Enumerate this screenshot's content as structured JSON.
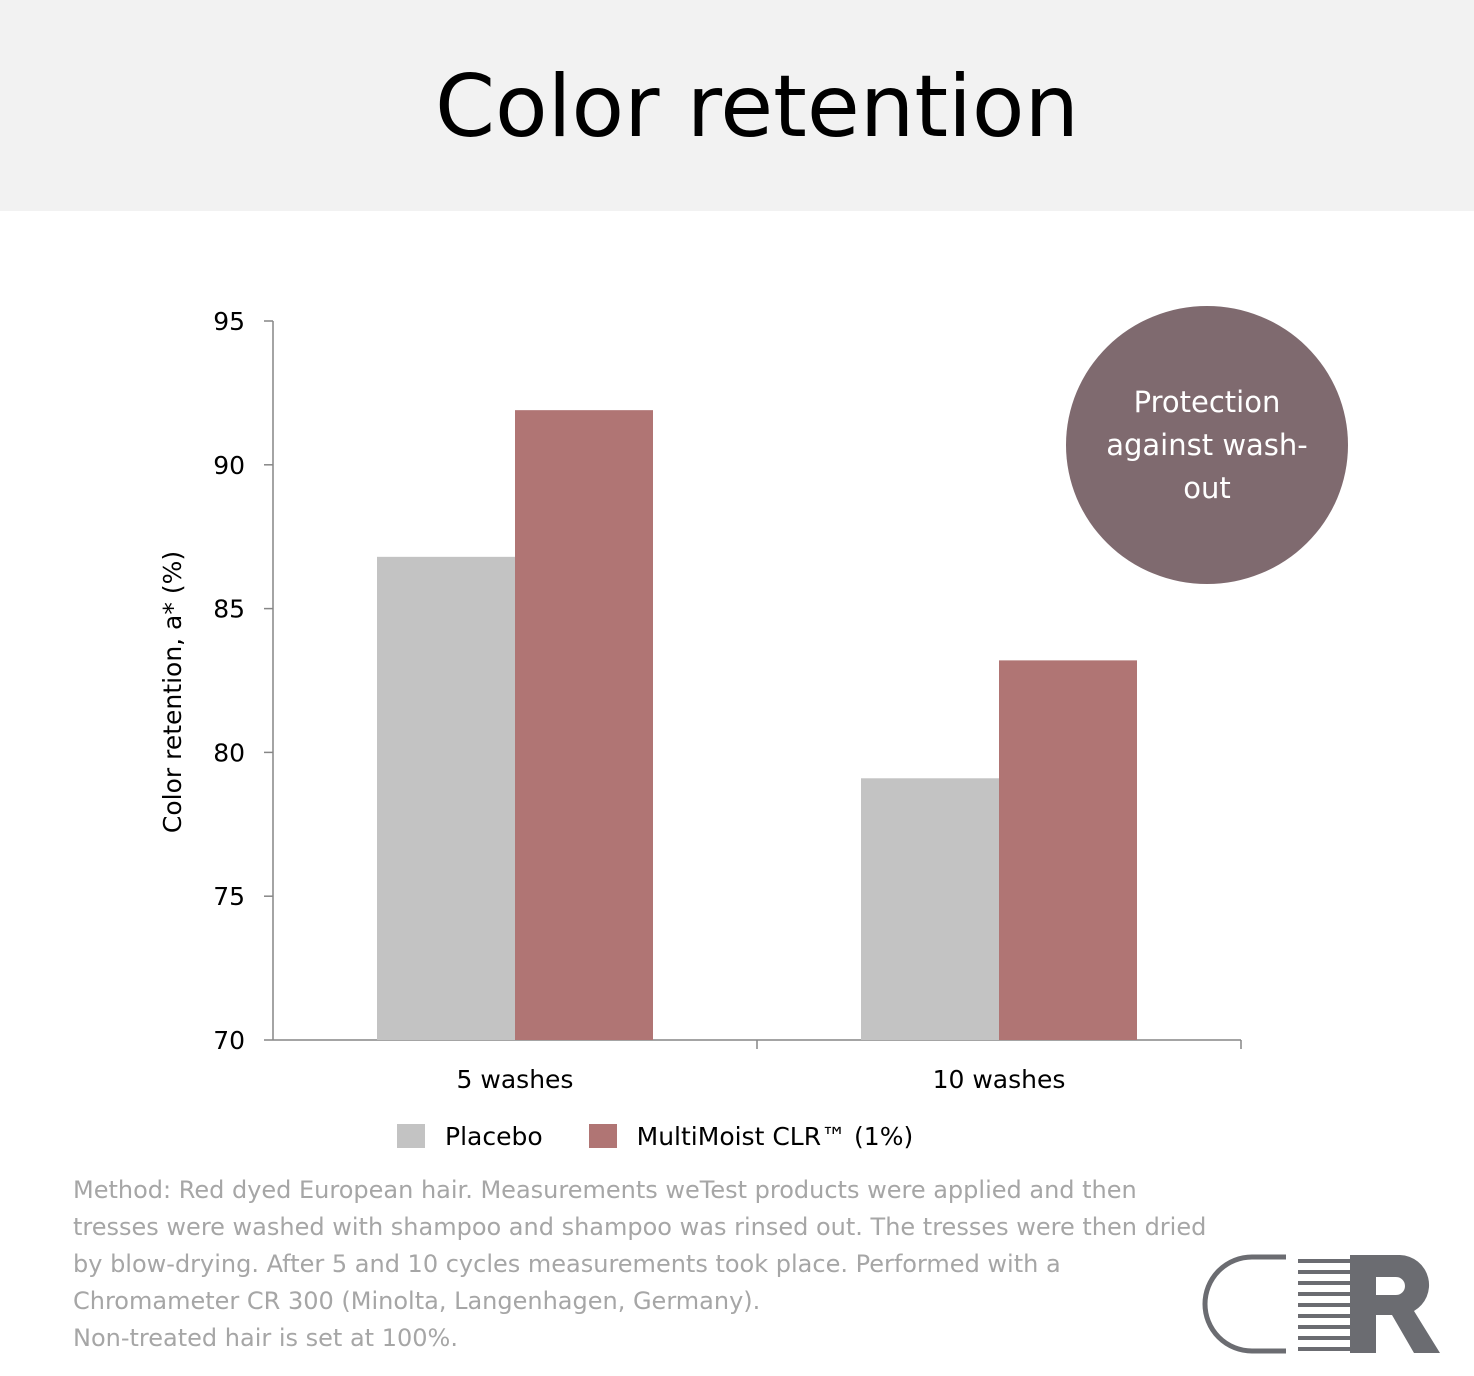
{
  "header": {
    "title": "Color retention"
  },
  "badge": {
    "text": "Protection against wash-out"
  },
  "chart_data": {
    "type": "bar",
    "categories": [
      "5 washes",
      "10 washes"
    ],
    "series": [
      {
        "name": "Placebo",
        "values": [
          86.8,
          79.1
        ],
        "color": "#c3c3c3"
      },
      {
        "name": "MultiMoist CLR™ (1%)",
        "values": [
          91.9,
          83.2
        ],
        "color": "#b07574"
      }
    ],
    "ylabel": "Color retention, a* (%)",
    "xlabel": "",
    "ylim": [
      70,
      95
    ],
    "yticks": [
      "70",
      "75",
      "80",
      "85",
      "90",
      "95"
    ],
    "grid": false,
    "legend": "bottom"
  },
  "method": {
    "lines": [
      "Method: Red dyed European hair. Measurements weTest products were applied and then",
      "tresses were washed with shampoo and shampoo was rinsed out. The tresses were then dried",
      "by blow-drying. After 5 and 10  cycles measurements took place. Performed with a",
      "Chromameter CR 300 (Minolta, Langenhagen, Germany).",
      "Non-treated hair is set at 100%."
    ]
  },
  "logo": {
    "text": "CLR",
    "color": "#6b6c71"
  }
}
